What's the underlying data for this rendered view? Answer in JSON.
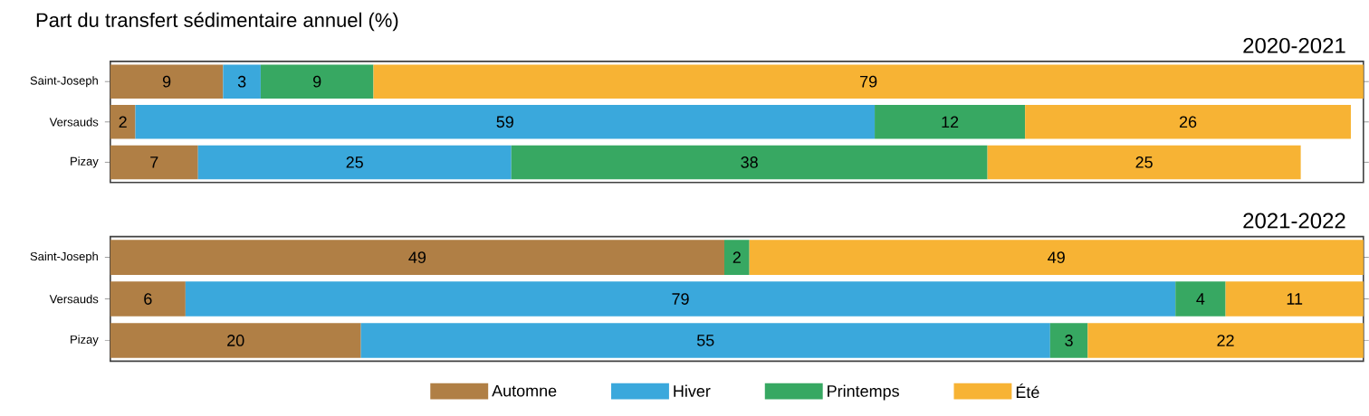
{
  "chart_data": [
    {
      "type": "bar",
      "orientation": "horizontal",
      "stacked": true,
      "data_labels": true,
      "title": "Part du transfert sédimentaire annuel (%)",
      "subtitle": "2020-2021",
      "categories": [
        "Saint-Joseph",
        "Versauds",
        "Pizay"
      ],
      "xlim": [
        0,
        100
      ],
      "tick_labels": "y",
      "series": [
        {
          "color": "#b07f45",
          "values": [
            9,
            2,
            7
          ]
        },
        {
          "color": "#3aa8dc",
          "values": [
            3,
            59,
            25
          ]
        },
        {
          "color": "#37a862",
          "values": [
            9,
            12,
            38
          ]
        },
        {
          "color": "#f7b334",
          "values": [
            79,
            26,
            25
          ]
        }
      ]
    },
    {
      "type": "bar",
      "orientation": "horizontal",
      "stacked": true,
      "data_labels": true,
      "title": "2021-2022",
      "categories": [
        "Saint-Joseph",
        "Versauds",
        "Pizay"
      ],
      "xlim": [
        0,
        100
      ],
      "tick_labels": "y",
      "legend": "bottom",
      "series": [
        {
          "name": "Automne",
          "color": "#b07f45",
          "values": [
            49,
            6,
            20
          ]
        },
        {
          "name": "Hiver",
          "color": "#3aa8dc",
          "values": [
            null,
            79,
            55
          ]
        },
        {
          "name": "Printemps",
          "color": "#37a862",
          "values": [
            2,
            4,
            3
          ]
        },
        {
          "name": "Été",
          "color": "#f7b334",
          "values": [
            49,
            11,
            22
          ]
        }
      ]
    }
  ]
}
